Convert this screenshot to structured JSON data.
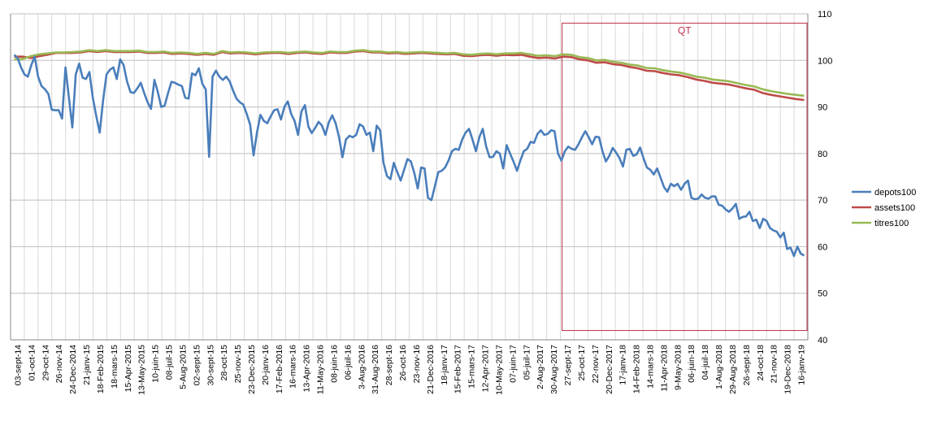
{
  "chart_data": {
    "type": "line",
    "title": "",
    "xlabel": "",
    "ylabel": "",
    "ylim": [
      40,
      110
    ],
    "y_ticks": [
      40,
      50,
      60,
      70,
      80,
      90,
      100,
      110
    ],
    "y_axis_side": "right",
    "grid": {
      "horizontal": true,
      "vertical": true
    },
    "legend_position": "right",
    "x_tick_labels": [
      "03-sept-14",
      "01-oct-14",
      "29-oct-14",
      "26-nov-14",
      "24-Dec-2014",
      "21-janv-15",
      "18-Feb-2015",
      "18-mars-15",
      "15-Apr-2015",
      "13-May-2015",
      "10-juin-15",
      "08-juil-15",
      "5-Aug-2015",
      "02-sept-15",
      "30-sept-15",
      "28-oct-15",
      "25-nov-15",
      "23-Dec-2015",
      "20-janv-16",
      "17-Feb-2016",
      "16-mars-16",
      "13-Apr-2016",
      "11-May-2016",
      "08-juin-16",
      "06-juil-16",
      "3-Aug-2016",
      "31-Aug-2016",
      "28-sept-16",
      "26-oct-16",
      "23-nov-16",
      "21-Dec-2016",
      "18-janv-17",
      "15-Feb-2017",
      "15-mars-17",
      "12-Apr-2017",
      "10-May-2017",
      "07-juin-17",
      "05-juil-17",
      "2-Aug-2017",
      "30-Aug-2017",
      "27-sept-17",
      "25-oct-17",
      "22-nov-17",
      "20-Dec-2017",
      "17-janv-18",
      "14-Feb-2018",
      "14-mars-18",
      "11-Apr-2018",
      "9-May-2018",
      "06-juin-18",
      "04-juil-18",
      "1-Aug-2018",
      "29-Aug-2018",
      "26-sept-18",
      "24-oct-18",
      "21-nov-18",
      "19-Dec-2018",
      "16-janv-19"
    ],
    "series": [
      {
        "name": "depots100",
        "color": "#4A7EBB",
        "values": [
          101.2,
          100.5,
          98.5,
          97.0,
          96.5,
          99.0,
          100.8,
          96.5,
          94.5,
          93.8,
          92.8,
          89.4,
          89.3,
          89.3,
          87.5,
          98.5,
          92.0,
          85.6,
          97.0,
          99.3,
          96.3,
          96.0,
          97.5,
          92.0,
          88.0,
          84.5,
          91.5,
          97.0,
          98.0,
          98.5,
          96.0,
          100.2,
          99.0,
          95.5,
          93.2,
          93.0,
          94.0,
          95.2,
          93.0,
          91.0,
          89.6,
          95.8,
          93.2,
          90.0,
          90.3,
          93.0,
          95.4,
          95.2,
          94.8,
          94.5,
          92.0,
          91.8,
          97.2,
          96.8,
          98.3,
          95.0,
          93.8,
          79.3,
          96.5,
          97.8,
          96.5,
          95.8,
          96.5,
          95.5,
          93.5,
          91.8,
          91.0,
          90.5,
          88.5,
          86.2,
          79.6,
          84.5,
          88.3,
          87.0,
          86.5,
          88.0,
          89.3,
          89.5,
          87.3,
          90.0,
          91.2,
          88.5,
          87.0,
          84.0,
          89.0,
          90.4,
          85.8,
          84.4,
          85.5,
          86.8,
          86.0,
          84.0,
          86.7,
          88.2,
          86.5,
          83.5,
          79.2,
          83.0,
          83.8,
          83.5,
          84.0,
          86.3,
          85.8,
          84.0,
          84.5,
          80.5,
          86.0,
          85.0,
          78.0,
          75.2,
          74.5,
          78.0,
          76.0,
          74.2,
          76.5,
          78.8,
          78.3,
          75.8,
          72.5,
          77.0,
          76.8,
          70.5,
          70.0,
          73.0,
          76.0,
          76.3,
          77.0,
          78.5,
          80.5,
          81.0,
          80.8,
          83.0,
          84.5,
          85.3,
          83.0,
          80.5,
          83.5,
          85.3,
          81.5,
          79.2,
          79.3,
          80.5,
          80.0,
          76.8,
          81.8,
          80.0,
          78.3,
          76.3,
          78.5,
          80.5,
          81.0,
          82.5,
          82.3,
          84.2,
          85.0,
          84.0,
          84.2,
          85.0,
          84.8,
          80.0,
          78.5,
          80.5,
          81.5,
          81.0,
          80.8,
          82.0,
          83.5,
          84.8,
          83.5,
          82.0,
          83.6,
          83.5,
          80.5,
          78.3,
          79.5,
          81.2,
          80.2,
          79.0,
          77.2,
          80.8,
          81.0,
          79.5,
          79.8,
          81.3,
          79.0,
          77.0,
          76.5,
          75.5,
          76.8,
          74.8,
          72.8,
          71.8,
          73.5,
          73.0,
          73.5,
          72.2,
          73.5,
          74.2,
          70.5,
          70.2,
          70.3,
          71.2,
          70.5,
          70.3,
          70.8,
          70.8,
          69.0,
          68.8,
          68.0,
          67.5,
          68.2,
          69.2,
          66.0,
          66.4,
          66.5,
          67.5,
          65.5,
          65.8,
          64.0,
          66.0,
          65.5,
          64.0,
          63.5,
          63.2,
          62.0,
          63.0,
          59.5,
          59.8,
          58.0,
          60.0,
          58.5,
          58.1
        ]
      },
      {
        "name": "assets100",
        "color": "#BE4B48",
        "values": [
          100.8,
          100.8,
          100.5,
          100.9,
          101.2,
          101.6,
          101.6,
          101.6,
          101.7,
          102.0,
          101.8,
          102.0,
          101.8,
          101.8,
          101.8,
          101.9,
          101.6,
          101.6,
          101.7,
          101.4,
          101.5,
          101.4,
          101.2,
          101.4,
          101.2,
          101.8,
          101.5,
          101.6,
          101.5,
          101.3,
          101.5,
          101.6,
          101.6,
          101.4,
          101.6,
          101.7,
          101.5,
          101.4,
          101.7,
          101.6,
          101.6,
          101.9,
          102.0,
          101.7,
          101.7,
          101.5,
          101.6,
          101.4,
          101.5,
          101.6,
          101.5,
          101.4,
          101.3,
          101.4,
          101.0,
          100.9,
          101.1,
          101.2,
          101.0,
          101.2,
          101.1,
          101.2,
          100.8,
          100.5,
          100.6,
          100.4,
          100.8,
          100.7,
          100.2,
          100.0,
          99.5,
          99.6,
          99.2,
          99.0,
          98.6,
          98.3,
          97.8,
          97.7,
          97.3,
          97.0,
          96.8,
          96.4,
          95.9,
          95.6,
          95.2,
          95.0,
          94.8,
          94.4,
          94.0,
          93.7,
          93.0,
          92.6,
          92.3,
          92.0,
          91.7,
          91.5
        ]
      },
      {
        "name": "titres100",
        "color": "#98B954",
        "values": [
          100.2,
          100.3,
          100.9,
          101.3,
          101.5,
          101.7,
          101.7,
          101.8,
          101.9,
          102.2,
          102.0,
          102.2,
          102.0,
          102.0,
          102.0,
          102.1,
          101.8,
          101.8,
          101.9,
          101.6,
          101.7,
          101.6,
          101.4,
          101.6,
          101.4,
          102.0,
          101.7,
          101.8,
          101.7,
          101.5,
          101.7,
          101.8,
          101.8,
          101.6,
          101.8,
          101.9,
          101.7,
          101.6,
          101.9,
          101.8,
          101.8,
          102.1,
          102.2,
          101.9,
          101.9,
          101.7,
          101.8,
          101.6,
          101.7,
          101.8,
          101.7,
          101.6,
          101.5,
          101.6,
          101.3,
          101.2,
          101.4,
          101.5,
          101.3,
          101.5,
          101.5,
          101.6,
          101.3,
          101.0,
          101.1,
          100.9,
          101.3,
          101.2,
          100.7,
          100.5,
          100.0,
          100.1,
          99.7,
          99.5,
          99.1,
          98.9,
          98.4,
          98.3,
          97.9,
          97.6,
          97.4,
          97.0,
          96.5,
          96.3,
          95.9,
          95.7,
          95.5,
          95.1,
          94.7,
          94.4,
          93.8,
          93.4,
          93.1,
          92.8,
          92.6,
          92.4
        ]
      }
    ],
    "annotation": {
      "label": "QT",
      "color": "#C0304A",
      "x_start": "27-sept-17",
      "x_end": "16-janv-19",
      "y_range": [
        42,
        108
      ]
    }
  }
}
